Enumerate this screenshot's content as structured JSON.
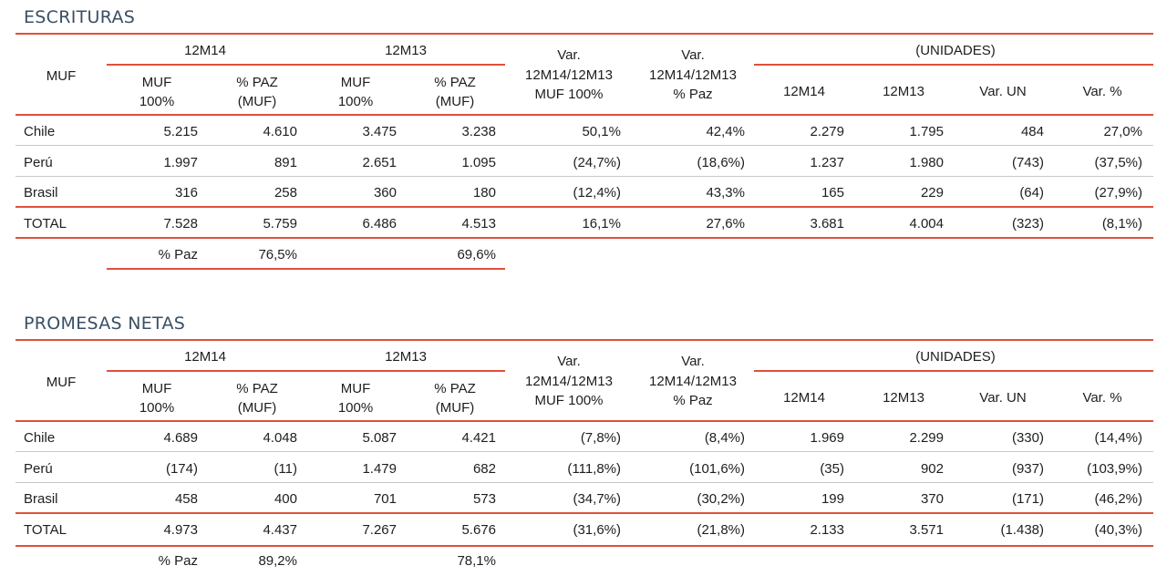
{
  "sections": [
    {
      "title": "ESCRITURAS",
      "headers": {
        "muf": "MUF",
        "p12m14": "12M14",
        "p12m13": "12M13",
        "var_muf": [
          "Var.",
          "12M14/12M13",
          "MUF 100%"
        ],
        "var_paz": [
          "Var.",
          "12M14/12M13",
          "% Paz"
        ],
        "unidades": "(UNIDADES)",
        "muf100": [
          "MUF",
          "100%"
        ],
        "pazmuf": [
          "% PAZ",
          "(MUF)"
        ],
        "u12m14": "12M14",
        "u12m13": "12M13",
        "varun": "Var. UN",
        "varpct": "Var. %"
      },
      "rows": [
        [
          "Chile",
          "5.215",
          "4.610",
          "3.475",
          "3.238",
          "50,1%",
          "42,4%",
          "2.279",
          "1.795",
          "484",
          "27,0%"
        ],
        [
          "Perú",
          "1.997",
          "891",
          "2.651",
          "1.095",
          "(24,7%)",
          "(18,6%)",
          "1.237",
          "1.980",
          "(743)",
          "(37,5%)"
        ],
        [
          "Brasil",
          "316",
          "258",
          "360",
          "180",
          "(12,4%)",
          "43,3%",
          "165",
          "229",
          "(64)",
          "(27,9%)"
        ]
      ],
      "total": [
        "TOTAL",
        "7.528",
        "5.759",
        "6.486",
        "4.513",
        "16,1%",
        "27,6%",
        "3.681",
        "4.004",
        "(323)",
        "(8,1%)"
      ],
      "paz": {
        "label": "% Paz",
        "v12m14": "76,5%",
        "v12m13": "69,6%"
      }
    },
    {
      "title": "PROMESAS NETAS",
      "headers": {
        "muf": "MUF",
        "p12m14": "12M14",
        "p12m13": "12M13",
        "var_muf": [
          "Var.",
          "12M14/12M13",
          "MUF 100%"
        ],
        "var_paz": [
          "Var.",
          "12M14/12M13",
          "% Paz"
        ],
        "unidades": "(UNIDADES)",
        "muf100": [
          "MUF",
          "100%"
        ],
        "pazmuf": [
          "% PAZ",
          "(MUF)"
        ],
        "u12m14": "12M14",
        "u12m13": "12M13",
        "varun": "Var. UN",
        "varpct": "Var. %"
      },
      "rows": [
        [
          "Chile",
          "4.689",
          "4.048",
          "5.087",
          "4.421",
          "(7,8%)",
          "(8,4%)",
          "1.969",
          "2.299",
          "(330)",
          "(14,4%)"
        ],
        [
          "Perú",
          "(174)",
          "(11)",
          "1.479",
          "682",
          "(111,8%)",
          "(101,6%)",
          "(35)",
          "902",
          "(937)",
          "(103,9%)"
        ],
        [
          "Brasil",
          "458",
          "400",
          "701",
          "573",
          "(34,7%)",
          "(30,2%)",
          "199",
          "370",
          "(171)",
          "(46,2%)"
        ]
      ],
      "total": [
        "TOTAL",
        "4.973",
        "4.437",
        "7.267",
        "5.676",
        "(31,6%)",
        "(21,8%)",
        "2.133",
        "3.571",
        "(1.438)",
        "(40,3%)"
      ],
      "paz": {
        "label": "% Paz",
        "v12m14": "89,2%",
        "v12m13": "78,1%"
      }
    }
  ],
  "colors": {
    "accent": "#e0503c",
    "title": "#3a4f64"
  }
}
